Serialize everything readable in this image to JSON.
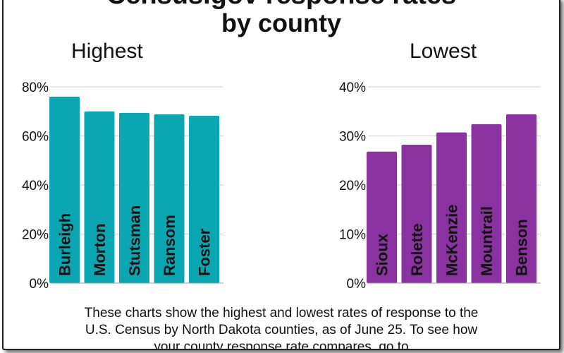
{
  "title": {
    "line1": "Census.gov response rates",
    "line2": "by county"
  },
  "caption": [
    "These charts show the highest and lowest rates of response to the",
    "U.S. Census by North Dakota counties, as of June 25. To see how",
    "your county response rate compares, go to"
  ],
  "chart_data": [
    {
      "type": "bar",
      "title": "Highest",
      "categories": [
        "Burleigh",
        "Morton",
        "Stutsman",
        "Ransom",
        "Foster"
      ],
      "values": [
        76,
        70,
        69.4,
        68.8,
        68.2
      ],
      "ylim": [
        0,
        80
      ],
      "yticks": [
        "0%",
        "20%",
        "40%",
        "60%",
        "80%"
      ],
      "ytick_values": [
        0,
        20,
        40,
        60,
        80
      ],
      "color": "#0aa7b3",
      "xlabel": "",
      "ylabel": ""
    },
    {
      "type": "bar",
      "title": "Lowest",
      "categories": [
        "Sioux",
        "Rolette",
        "McKenzie",
        "Mountrail",
        "Benson"
      ],
      "values": [
        26.8,
        28.2,
        30.7,
        32.4,
        34.4
      ],
      "ylim": [
        0,
        40
      ],
      "yticks": [
        "0%",
        "10%",
        "20%",
        "30%",
        "40%"
      ],
      "ytick_values": [
        0,
        10,
        20,
        30,
        40
      ],
      "color": "#8a32a0",
      "xlabel": "",
      "ylabel": ""
    }
  ]
}
